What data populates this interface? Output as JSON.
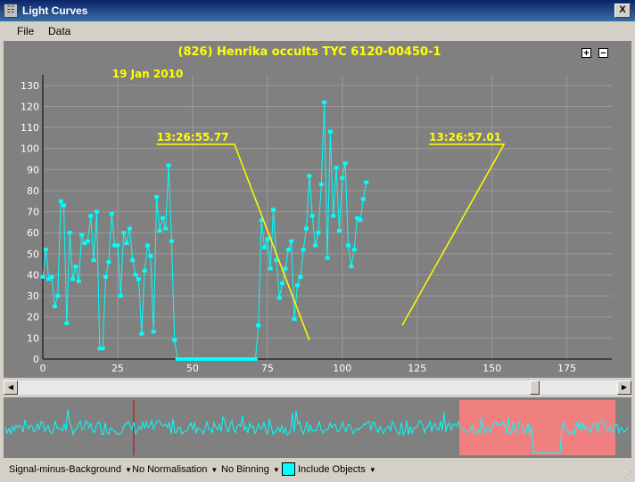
{
  "window": {
    "title": "Light Curves",
    "close_label": "X"
  },
  "menu": {
    "file": "File",
    "data": "Data"
  },
  "zoom": {
    "plus": "+",
    "minus": "−"
  },
  "statusbar": {
    "signal": "Signal-minus-Background",
    "normalisation": "No Normalisation",
    "binning": "No Binning",
    "include": "Include Objects"
  },
  "colors": {
    "curve": "#00ffff",
    "model": "#ffff00",
    "plot_bg": "#808080",
    "overview_highlight": "#f08080",
    "marker": "#c00000"
  },
  "chart_data": {
    "type": "line",
    "title": "(826) Henrika occults TYC 6120-00450-1",
    "subtitle": "19 Jan 2010",
    "xlim": [
      0,
      190
    ],
    "ylim": [
      0,
      135
    ],
    "x_ticks": [
      0,
      25,
      50,
      75,
      100,
      125,
      150,
      175
    ],
    "y_ticks": [
      0,
      10,
      20,
      30,
      40,
      50,
      60,
      70,
      80,
      90,
      100,
      110,
      120,
      130
    ],
    "grid": true,
    "series": [
      {
        "values": [
          39,
          52,
          38,
          39,
          25,
          30,
          75,
          73,
          17,
          60,
          38,
          44,
          37,
          59,
          55,
          56,
          68,
          47,
          70,
          5,
          5,
          39,
          46,
          69,
          54,
          54,
          30,
          60,
          55,
          62,
          47,
          40,
          38,
          12,
          42,
          54,
          49,
          13,
          77,
          61,
          67,
          62,
          92,
          56,
          9,
          0,
          0,
          0,
          0,
          0,
          0,
          0,
          0,
          0,
          0,
          0,
          0,
          0,
          0,
          0,
          0,
          0,
          0,
          0,
          0,
          0,
          0,
          0,
          0,
          0,
          0,
          0,
          16,
          66,
          53,
          57,
          43,
          71,
          47,
          29,
          36,
          43,
          52,
          56,
          19,
          35,
          39,
          52,
          62,
          87,
          68,
          54,
          60,
          83,
          122,
          48,
          108,
          68,
          91,
          61,
          86,
          93,
          54,
          44,
          52,
          67,
          66,
          76,
          84
        ]
      }
    ],
    "annotations": [
      {
        "text": "13:26:55.77",
        "level_baseline": 102,
        "level_bottom": 9,
        "x_start": 38,
        "x_flat_end": 64,
        "x_bottom": 89
      },
      {
        "text": "13:26:57.01",
        "level_baseline": 102,
        "level_bottom": 16,
        "x_start": 129,
        "x_flat_end": 154,
        "x_bottom": 120
      }
    ]
  }
}
